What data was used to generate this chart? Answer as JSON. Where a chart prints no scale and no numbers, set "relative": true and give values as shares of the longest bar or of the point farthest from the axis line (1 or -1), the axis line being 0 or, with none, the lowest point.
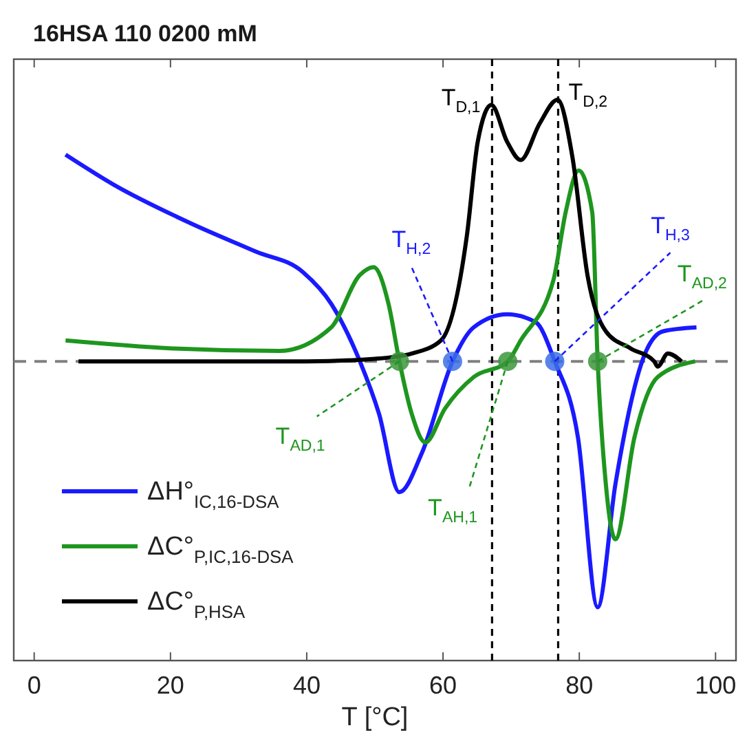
{
  "chart_data": {
    "type": "line",
    "title": "16HSA 110 0200 mM",
    "xlabel": "T [°C]",
    "relative": true,
    "xlim": [
      -3,
      103
    ],
    "xticks": [
      0,
      20,
      40,
      60,
      80,
      100
    ],
    "tick_labels": "x",
    "grid": false,
    "legend": "bottom left",
    "marker": "none",
    "series": [
      {
        "name": "ΔH°$_{IC,16-DSA}$",
        "color": "#1a1aff",
        "x": [
          4.6,
          11.7,
          22.8,
          32.5,
          39.5,
          43.6,
          47.8,
          50.6,
          53.6,
          56.9,
          61.4,
          64.5,
          69.4,
          73.6,
          76.4,
          79.8,
          82.7,
          85.3,
          89.5,
          92.3,
          97.2
        ],
        "values": [
          0.79,
          0.675,
          0.53,
          0.42,
          0.34,
          0.22,
          0,
          -0.2,
          -0.5,
          -0.35,
          0,
          0.13,
          0.18,
          0.15,
          0,
          -0.29,
          -0.94,
          -0.47,
          0.02,
          0.115,
          0.13
        ]
      },
      {
        "name": "ΔC°$_{P,IC,16-DSA}$",
        "color": "#1e961e",
        "x": [
          4.6,
          20,
          36,
          43.6,
          47.8,
          49.8,
          52,
          53.6,
          55.4,
          57.4,
          60.3,
          64.5,
          69.5,
          71.4,
          76.2,
          78,
          79.9,
          81.9,
          82.7,
          83.9,
          85.3,
          88.1,
          91.5,
          97
        ],
        "values": [
          0.08,
          0.05,
          0.04,
          0.13,
          0.33,
          0.36,
          0.22,
          0,
          -0.2,
          -0.31,
          -0.18,
          -0.06,
          0,
          0.08,
          0.31,
          0.57,
          0.73,
          0.57,
          0,
          -0.47,
          -0.68,
          -0.29,
          -0.06,
          0
        ]
      },
      {
        "name": "ΔC°$_{P,HSA}$",
        "color": "#000000",
        "x": [
          6.5,
          40,
          50,
          55.4,
          59.7,
          63.5,
          65.1,
          67.1,
          69.4,
          71.4,
          74.2,
          76.8,
          79,
          81.2,
          83.9,
          87.5,
          91,
          91.5,
          93,
          95
        ],
        "values": [
          0,
          0,
          0.01,
          0.03,
          0.08,
          0.48,
          0.84,
          0.98,
          0.84,
          0.77,
          0.91,
          1.0,
          0.78,
          0.33,
          0.115,
          0.05,
          0,
          -0.02,
          0.03,
          0
        ]
      },
      {
        "type": "scatter",
        "marker": "circle",
        "color": "#3c6ee6",
        "x": [
          61.4,
          76.4
        ],
        "values": [
          0,
          0
        ]
      },
      {
        "type": "scatter",
        "marker": "circle",
        "color": "#3c963c",
        "x": [
          53.6,
          69.5,
          82.7
        ],
        "values": [
          0,
          0,
          0
        ]
      }
    ],
    "ref_lines": [
      {
        "axis": "y",
        "value": 0,
        "color": "#808080",
        "line_style": "dashed"
      },
      {
        "axis": "x",
        "value": 67.2,
        "color": "#000000",
        "line_style": "dashed"
      },
      {
        "axis": "x",
        "value": 76.9,
        "color": "#000000",
        "line_style": "dashed"
      }
    ],
    "annotations": [
      {
        "text": "T$_{D,1}$",
        "x": 67.1,
        "y": 0.98
      },
      {
        "text": "T$_{D,2}$",
        "x": 76.8,
        "y": 1.0
      },
      {
        "text": "T$_{H,2}$",
        "x": 61.4,
        "y": 0
      },
      {
        "text": "T$_{H,3}$",
        "x": 76.4,
        "y": 0
      },
      {
        "text": "T$_{AD,2}$",
        "x": 82.7,
        "y": 0
      },
      {
        "text": "T$_{AD,1}$",
        "x": 53.6,
        "y": 0
      },
      {
        "text": "T$_{AH,1}$",
        "x": 69.5,
        "y": 0
      }
    ]
  }
}
